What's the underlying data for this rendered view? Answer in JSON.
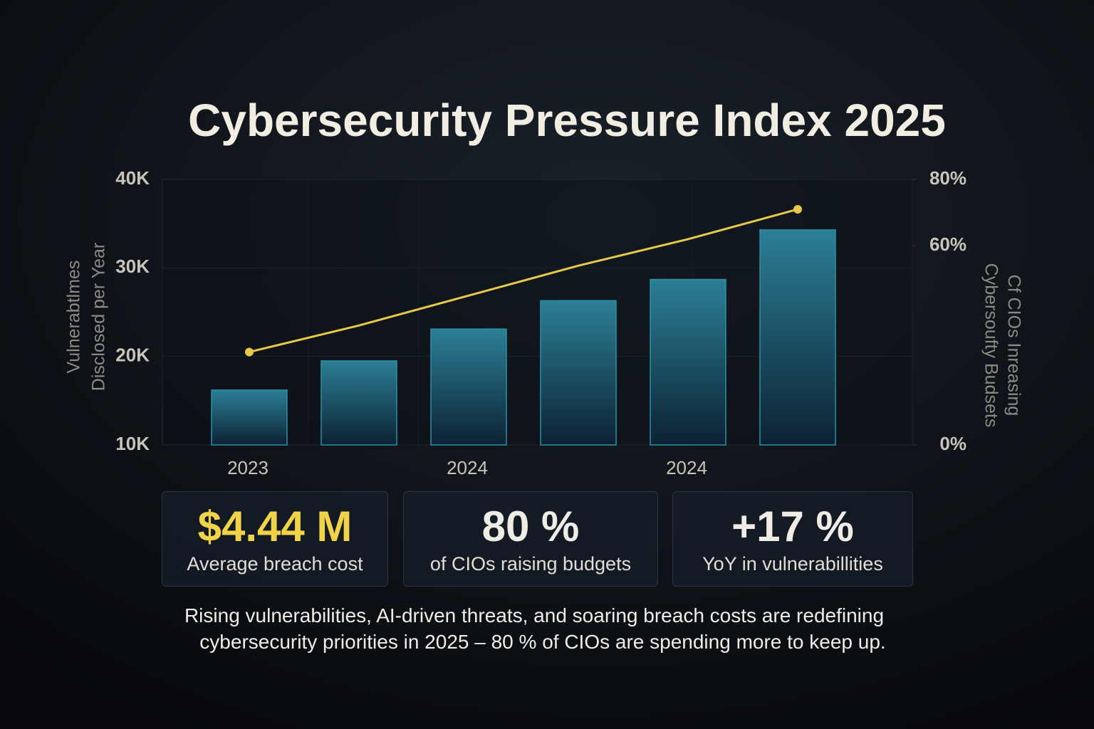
{
  "chart_data": {
    "type": "bar",
    "title": "Cybersecurity Pressure Index 2025",
    "y_label": [
      "Vulnerabtlmes",
      "Disclosed per Year"
    ],
    "y2_label": [
      "Cf CIOs Inreasing",
      "Cybersoufty Budsets"
    ],
    "categories": [
      "2023",
      null,
      "2024",
      null,
      "2024",
      null
    ],
    "series": [
      {
        "type": "bar",
        "color": "#2b8fa8",
        "values": [
          16.2,
          19.5,
          23.1,
          26.3,
          28.7,
          34.3
        ]
      },
      {
        "type": "line",
        "color": "#e8c84a",
        "axis": "y2",
        "values": [
          28,
          36,
          45,
          54,
          62,
          71
        ]
      }
    ],
    "ylim": [
      10,
      40
    ],
    "yticks": [
      {
        "value": 10,
        "label": "10K"
      },
      {
        "value": 20,
        "label": "20K"
      },
      {
        "value": 30,
        "label": "30K"
      },
      {
        "value": 40,
        "label": "40K"
      }
    ],
    "y2lim": [
      0,
      80
    ],
    "y2ticks": [
      {
        "value": 0,
        "label": "0%"
      },
      {
        "value": 60,
        "label": "60%"
      },
      {
        "value": 80,
        "label": "80%"
      }
    ],
    "grid": true
  },
  "stats": [
    {
      "value": "$4.44 M",
      "label": "Average breach cost",
      "color": "#f1d34a"
    },
    {
      "value": "80 %",
      "label": "of CIOs raising budgets",
      "color": "#efece6"
    },
    {
      "value": "+17 %",
      "label": "YoY in vulnerabillities",
      "color": "#efece6"
    }
  ],
  "footnote": [
    "Rising vulnerabilities, AI-driven threats, and soaring breach costs are redefining",
    "cybersecurity priorities in 2025 – 80 % of CIOs are spending more to keep up."
  ]
}
